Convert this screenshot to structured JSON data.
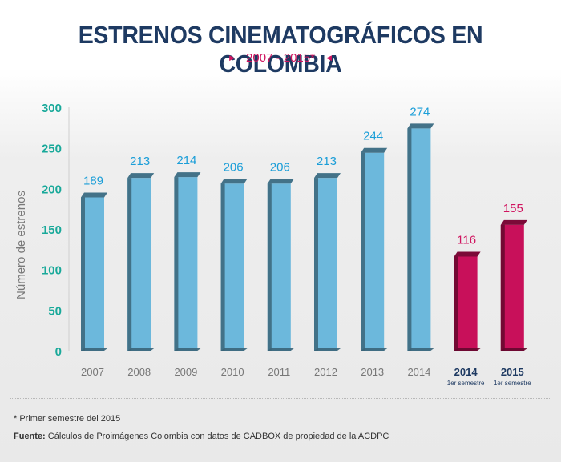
{
  "title": "ESTRENOS CINEMATOGRÁFICOS EN COLOMBIA",
  "subtitle": "2007 - 2015*",
  "footnote": "* Primer semestre del 2015",
  "source_label": "Fuente:",
  "source_text": "Cálculos de Proimágenes Colombia con datos de CADBOX de propiedad de la ACDPC",
  "colors": {
    "annual": "#6cb8dc",
    "semester": "#c8105a",
    "annual_label": "#1b9ed8",
    "semester_label": "#d0145f",
    "y_ticks": "#19a99a",
    "title": "#1e3a62"
  },
  "chart_data": {
    "type": "bar",
    "ylabel": "Número de estrenos",
    "ylim": [
      0,
      300
    ],
    "yticks": [
      0,
      50,
      100,
      150,
      200,
      250,
      300
    ],
    "grid": false,
    "categories": [
      {
        "label": "2007",
        "sublabel": "",
        "value": 189,
        "group": "annual"
      },
      {
        "label": "2008",
        "sublabel": "",
        "value": 213,
        "group": "annual"
      },
      {
        "label": "2009",
        "sublabel": "",
        "value": 214,
        "group": "annual"
      },
      {
        "label": "2010",
        "sublabel": "",
        "value": 206,
        "group": "annual"
      },
      {
        "label": "2011",
        "sublabel": "",
        "value": 206,
        "group": "annual"
      },
      {
        "label": "2012",
        "sublabel": "",
        "value": 213,
        "group": "annual"
      },
      {
        "label": "2013",
        "sublabel": "",
        "value": 244,
        "group": "annual"
      },
      {
        "label": "2014",
        "sublabel": "",
        "value": 274,
        "group": "annual"
      },
      {
        "label": "2014",
        "sublabel": "1er semestre",
        "value": 116,
        "group": "semester"
      },
      {
        "label": "2015",
        "sublabel": "1er semestre",
        "value": 155,
        "group": "semester"
      }
    ]
  }
}
